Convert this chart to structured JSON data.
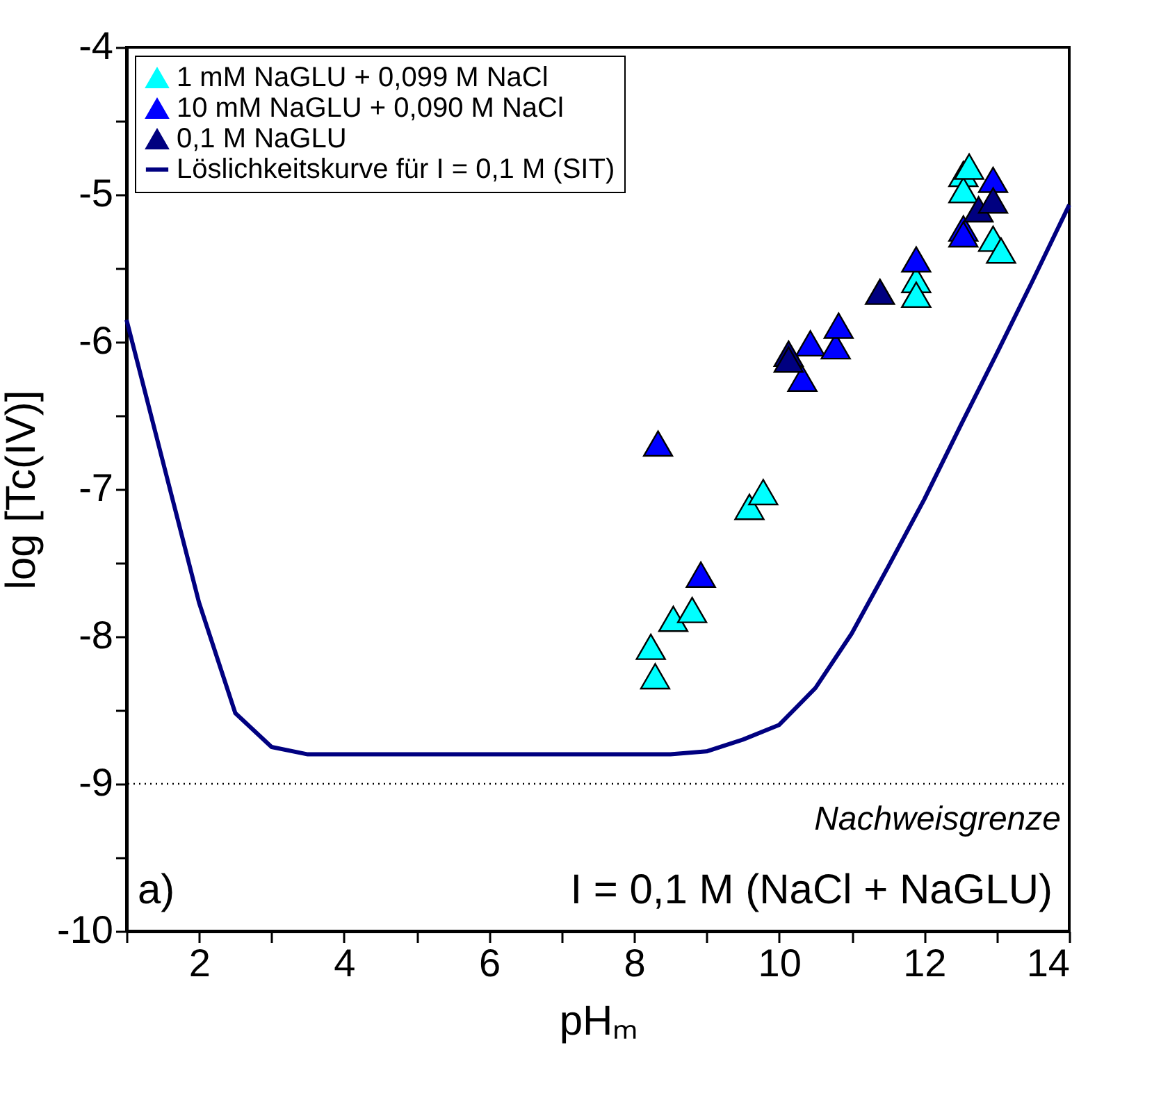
{
  "chart_data": {
    "type": "scatter",
    "xlabel": "pHₘ",
    "ylabel": "log [Tc(IV)]",
    "xlim": [
      1,
      14
    ],
    "ylim": [
      -10,
      -4
    ],
    "xticks": [
      {
        "value": 1,
        "label": null
      },
      2,
      {
        "value": 3,
        "label": null
      },
      4,
      {
        "value": 5,
        "label": null
      },
      6,
      {
        "value": 7,
        "label": null
      },
      8,
      {
        "value": 9,
        "label": null
      },
      10,
      {
        "value": 11,
        "label": null
      },
      12,
      {
        "value": 13,
        "label": null
      },
      14
    ],
    "yticks": [
      -10,
      {
        "value": -9.5,
        "label": null
      },
      -9,
      {
        "value": -8.5,
        "label": null
      },
      -8,
      {
        "value": -7.5,
        "label": null
      },
      -7,
      {
        "value": -6.5,
        "label": null
      },
      -6,
      {
        "value": -5.5,
        "label": null
      },
      -5,
      {
        "value": -4.5,
        "label": null
      },
      -4
    ],
    "marker": "triangle",
    "legend": "top left",
    "series": [
      {
        "name": "1 mM NaGLU + 0,099 M NaCl",
        "color": "#00ffff",
        "x": [
          8.23,
          8.29,
          8.54,
          8.8,
          9.59,
          9.78,
          11.89,
          11.89,
          12.54,
          12.54,
          12.62,
          12.95,
          13.06
        ],
        "values": [
          -8.07,
          -8.27,
          -7.88,
          -7.82,
          -7.12,
          -7.02,
          -5.58,
          -5.68,
          -4.86,
          -4.97,
          -4.81,
          -5.3,
          -5.38
        ]
      },
      {
        "name": "10 mM NaGLU + 0,090 M NaCl",
        "color": "#0000ff",
        "x": [
          8.33,
          8.92,
          10.32,
          10.43,
          10.78,
          10.82,
          11.89,
          12.54,
          12.54,
          12.95
        ],
        "values": [
          -6.69,
          -7.58,
          -6.25,
          -6.01,
          -6.03,
          -5.89,
          -5.44,
          -5.23,
          -5.27,
          -4.9
        ]
      },
      {
        "name": "0,1 M NaGLU",
        "color": "#000080",
        "x": [
          10.13,
          10.13,
          11.39,
          12.75,
          12.95
        ],
        "values": [
          -6.08,
          -6.12,
          -5.66,
          -5.1,
          -5.04
        ]
      },
      {
        "name": "Löslichkeitskurve für I = 0,1 M (SIT)",
        "type": "line",
        "color": "#000080",
        "marker": "none",
        "x": [
          1,
          2,
          2.5,
          3,
          3.5,
          8.5,
          9,
          9.5,
          10,
          10.5,
          11,
          11.5,
          12,
          12.5,
          13,
          13.5,
          14
        ],
        "values": [
          -5.85,
          -7.77,
          -8.52,
          -8.75,
          -8.8,
          -8.8,
          -8.78,
          -8.7,
          -8.6,
          -8.35,
          -7.98,
          -7.53,
          -7.07,
          -6.57,
          -6.08,
          -5.58,
          -5.07
        ]
      }
    ],
    "ref_lines": [
      {
        "axis": "y",
        "value": -9,
        "label": "Nachweisgrenze",
        "line_style": "dotted",
        "color": "#000000"
      }
    ],
    "annotations": [
      "a)",
      "I = 0,1 M (NaCl + NaGLU)"
    ]
  }
}
